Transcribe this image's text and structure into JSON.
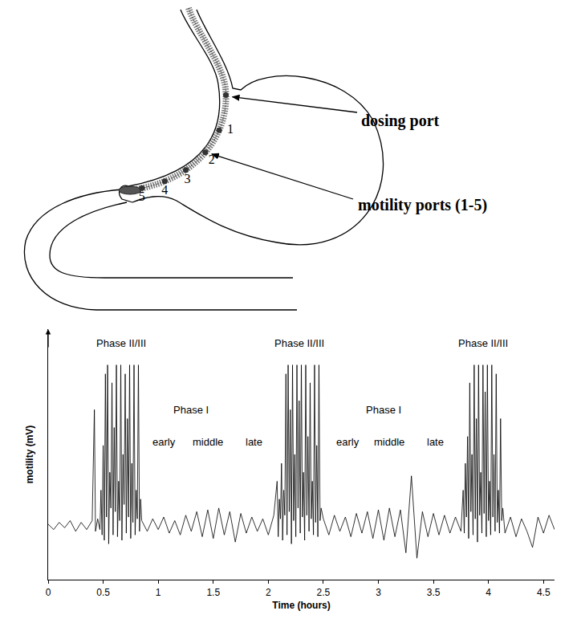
{
  "diagram": {
    "dosing_port_label": "dosing port",
    "motility_ports_label": "motility ports (1-5)",
    "port_numbers": [
      "1",
      "2",
      "3",
      "4",
      "5"
    ]
  },
  "chart_data": {
    "type": "line",
    "x_label": "Time (hours)",
    "y_label": "motility (mV)",
    "color": "#000000",
    "x": [
      0,
      0.05,
      0.1,
      0.15,
      0.2,
      0.25,
      0.3,
      0.35,
      0.4,
      0.42,
      0.43,
      0.45,
      0.47,
      0.48,
      0.49,
      0.5,
      0.51,
      0.52,
      0.53,
      0.54,
      0.55,
      0.56,
      0.57,
      0.58,
      0.59,
      0.6,
      0.61,
      0.62,
      0.63,
      0.64,
      0.65,
      0.66,
      0.67,
      0.68,
      0.69,
      0.7,
      0.71,
      0.72,
      0.73,
      0.74,
      0.75,
      0.76,
      0.77,
      0.78,
      0.79,
      0.8,
      0.81,
      0.82,
      0.83,
      0.84,
      0.85,
      0.9,
      0.95,
      1,
      1.05,
      1.1,
      1.15,
      1.2,
      1.25,
      1.3,
      1.35,
      1.4,
      1.45,
      1.5,
      1.55,
      1.6,
      1.65,
      1.7,
      1.75,
      1.8,
      1.85,
      1.9,
      1.95,
      2,
      2.05,
      2.08,
      2.09,
      2.1,
      2.11,
      2.12,
      2.13,
      2.14,
      2.15,
      2.16,
      2.17,
      2.18,
      2.19,
      2.2,
      2.21,
      2.22,
      2.23,
      2.24,
      2.25,
      2.26,
      2.27,
      2.28,
      2.29,
      2.3,
      2.31,
      2.32,
      2.33,
      2.34,
      2.35,
      2.36,
      2.37,
      2.38,
      2.39,
      2.4,
      2.41,
      2.42,
      2.43,
      2.44,
      2.45,
      2.46,
      2.47,
      2.48,
      2.5,
      2.55,
      2.6,
      2.65,
      2.7,
      2.75,
      2.8,
      2.85,
      2.9,
      2.95,
      3,
      3.05,
      3.1,
      3.15,
      3.2,
      3.25,
      3.3,
      3.35,
      3.4,
      3.45,
      3.5,
      3.55,
      3.6,
      3.65,
      3.7,
      3.75,
      3.77,
      3.78,
      3.79,
      3.8,
      3.81,
      3.82,
      3.83,
      3.84,
      3.85,
      3.86,
      3.87,
      3.88,
      3.89,
      3.9,
      3.91,
      3.92,
      3.93,
      3.94,
      3.95,
      3.96,
      3.97,
      3.98,
      3.99,
      4,
      4.01,
      4.02,
      4.03,
      4.04,
      4.05,
      4.06,
      4.07,
      4.08,
      4.09,
      4.1,
      4.11,
      4.12,
      4.13,
      4.15,
      4.2,
      4.25,
      4.3,
      4.35,
      4.4,
      4.45,
      4.5,
      4.55,
      4.6
    ],
    "values": [
      0.1,
      -0.2,
      0.2,
      -0.1,
      0.3,
      -0.3,
      0.2,
      -0.2,
      0.3,
      6.5,
      -0.3,
      0.4,
      -0.2,
      2.0,
      -0.5,
      4.5,
      -0.8,
      8.5,
      0.5,
      9.0,
      -1.0,
      3.0,
      1.0,
      8.0,
      -0.5,
      5.5,
      0.8,
      9.0,
      -0.6,
      2.5,
      0.3,
      9.0,
      -0.8,
      4.0,
      1.2,
      8.5,
      -0.4,
      6.0,
      0.5,
      9.0,
      -0.7,
      3.5,
      0.2,
      9.0,
      -0.5,
      2.0,
      0.4,
      9.0,
      -0.3,
      1.5,
      0.3,
      -0.3,
      0.4,
      -0.2,
      0.5,
      -0.4,
      0.3,
      -0.5,
      0.6,
      -0.3,
      0.8,
      -0.6,
      0.9,
      -0.7,
      1.0,
      -0.5,
      0.8,
      -0.9,
      0.7,
      -0.4,
      0.5,
      -0.3,
      0.4,
      -0.5,
      0.6,
      2.5,
      -0.6,
      1.5,
      0.4,
      3.5,
      -0.8,
      2.0,
      0.6,
      8.5,
      -0.5,
      9.0,
      0.8,
      6.5,
      -1.0,
      9.0,
      0.3,
      4.0,
      -0.6,
      9.0,
      1.0,
      7.0,
      -0.4,
      9.0,
      0.5,
      3.0,
      -0.8,
      9.0,
      0.6,
      5.0,
      -0.3,
      8.0,
      0.4,
      2.5,
      -0.5,
      9.0,
      0.2,
      4.5,
      -0.6,
      9.0,
      0.3,
      1.0,
      0.4,
      -0.5,
      0.6,
      -0.3,
      0.5,
      -0.6,
      0.7,
      -0.4,
      0.8,
      -0.7,
      0.9,
      -0.8,
      1.0,
      -0.6,
      0.9,
      -1.5,
      2.8,
      -1.8,
      0.8,
      -0.6,
      0.7,
      -0.5,
      0.6,
      -0.4,
      0.5,
      -0.3,
      2.0,
      -0.4,
      3.5,
      0.5,
      5.0,
      -0.7,
      8.0,
      0.8,
      4.0,
      -0.5,
      9.0,
      0.4,
      6.0,
      -0.9,
      9.0,
      0.6,
      3.0,
      -0.4,
      9.0,
      0.7,
      7.5,
      -0.6,
      9.0,
      0.3,
      2.5,
      -0.5,
      9.0,
      0.5,
      4.0,
      -0.3,
      8.5,
      0.2,
      2.0,
      -0.4,
      6.0,
      0.3,
      1.0,
      -0.4,
      0.5,
      -0.6,
      0.4,
      -0.3,
      -1.2,
      0.5,
      -0.4,
      0.6,
      -0.2
    ],
    "xlim": [
      0,
      4.6
    ],
    "xticks": [
      0,
      0.5,
      1,
      1.5,
      2,
      2.5,
      3,
      3.5,
      4,
      4.5
    ],
    "ylim": [
      -3,
      11
    ],
    "tick_labels": "x",
    "grid": false,
    "annotations": [
      {
        "text": "Phase II/III",
        "x": 0.66,
        "y": 10.2
      },
      {
        "text": "Phase I",
        "x": 1.3,
        "y": 6.5
      },
      {
        "text": "early",
        "x": 1.05,
        "y": 4.7
      },
      {
        "text": "middle",
        "x": 1.45,
        "y": 4.7
      },
      {
        "text": "late",
        "x": 1.87,
        "y": 4.7
      },
      {
        "text": "Phase II/III",
        "x": 2.28,
        "y": 10.2
      },
      {
        "text": "Phase I",
        "x": 3.05,
        "y": 6.5
      },
      {
        "text": "early",
        "x": 2.72,
        "y": 4.7
      },
      {
        "text": "middle",
        "x": 3.1,
        "y": 4.7
      },
      {
        "text": "late",
        "x": 3.52,
        "y": 4.7
      },
      {
        "text": "Phase II/III",
        "x": 3.95,
        "y": 10.2
      }
    ]
  }
}
